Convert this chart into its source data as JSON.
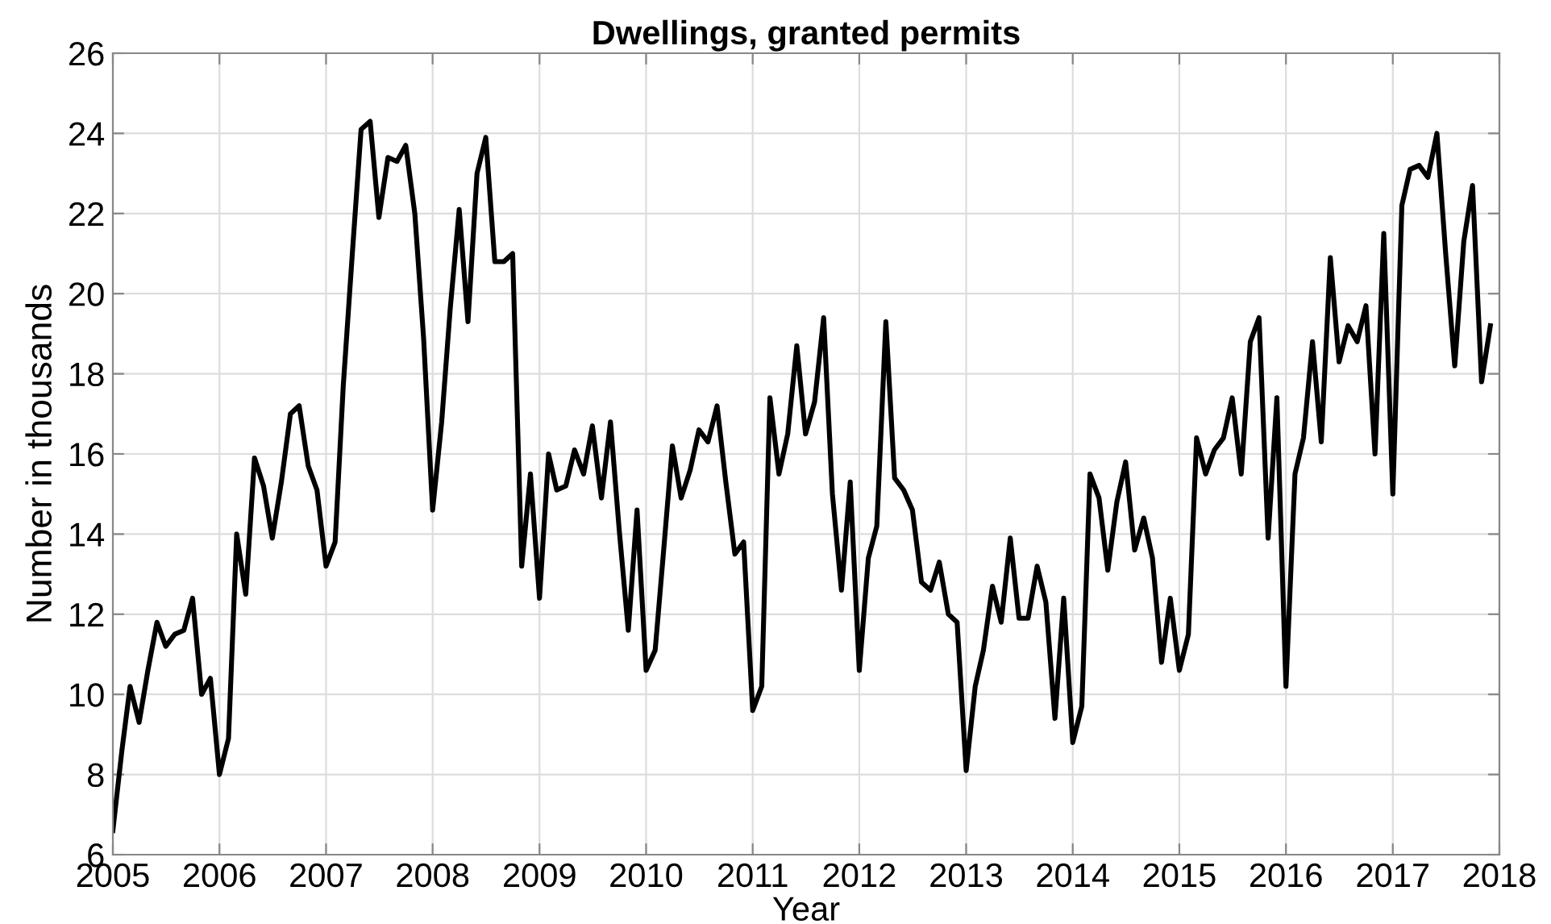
{
  "chart_data": {
    "type": "line",
    "title": "Dwellings, granted permits",
    "xlabel": "Year",
    "ylabel": "Number in thousands",
    "xlim": [
      "2005",
      "2018"
    ],
    "xticks": [
      "2005",
      "2006",
      "2007",
      "2008",
      "2009",
      "2010",
      "2011",
      "2012",
      "2013",
      "2014",
      "2015",
      "2016",
      "2017",
      "2018"
    ],
    "x": [
      "2005-01",
      "2005-02",
      "2005-03",
      "2005-04",
      "2005-05",
      "2005-06",
      "2005-07",
      "2005-08",
      "2005-09",
      "2005-10",
      "2005-11",
      "2005-12",
      "2006-01",
      "2006-02",
      "2006-03",
      "2006-04",
      "2006-05",
      "2006-06",
      "2006-07",
      "2006-08",
      "2006-09",
      "2006-10",
      "2006-11",
      "2006-12",
      "2007-01",
      "2007-02",
      "2007-03",
      "2007-04",
      "2007-05",
      "2007-06",
      "2007-07",
      "2007-08",
      "2007-09",
      "2007-10",
      "2007-11",
      "2007-12",
      "2008-01",
      "2008-02",
      "2008-03",
      "2008-04",
      "2008-05",
      "2008-06",
      "2008-07",
      "2008-08",
      "2008-09",
      "2008-10",
      "2008-11",
      "2008-12",
      "2009-01",
      "2009-02",
      "2009-03",
      "2009-04",
      "2009-05",
      "2009-06",
      "2009-07",
      "2009-08",
      "2009-09",
      "2009-10",
      "2009-11",
      "2009-12",
      "2010-01",
      "2010-02",
      "2010-03",
      "2010-04",
      "2010-05",
      "2010-06",
      "2010-07",
      "2010-08",
      "2010-09",
      "2010-10",
      "2010-11",
      "2010-12",
      "2011-01",
      "2011-02",
      "2011-03",
      "2011-04",
      "2011-05",
      "2011-06",
      "2011-07",
      "2011-08",
      "2011-09",
      "2011-10",
      "2011-11",
      "2011-12",
      "2012-01",
      "2012-02",
      "2012-03",
      "2012-04",
      "2012-05",
      "2012-06",
      "2012-07",
      "2012-08",
      "2012-09",
      "2012-10",
      "2012-11",
      "2012-12",
      "2013-01",
      "2013-02",
      "2013-03",
      "2013-04",
      "2013-05",
      "2013-06",
      "2013-07",
      "2013-08",
      "2013-09",
      "2013-10",
      "2013-11",
      "2013-12",
      "2014-01",
      "2014-02",
      "2014-03",
      "2014-04",
      "2014-05",
      "2014-06",
      "2014-07",
      "2014-08",
      "2014-09",
      "2014-10",
      "2014-11",
      "2014-12",
      "2015-01",
      "2015-02",
      "2015-03",
      "2015-04",
      "2015-05",
      "2015-06",
      "2015-07",
      "2015-08",
      "2015-09",
      "2015-10",
      "2015-11",
      "2015-12",
      "2016-01",
      "2016-02",
      "2016-03",
      "2016-04",
      "2016-05",
      "2016-06",
      "2016-07",
      "2016-08",
      "2016-09",
      "2016-10",
      "2016-11",
      "2016-12",
      "2017-01",
      "2017-02",
      "2017-03",
      "2017-04",
      "2017-05",
      "2017-06",
      "2017-07",
      "2017-08",
      "2017-09",
      "2017-10",
      "2017-11",
      "2017-12"
    ],
    "ylim": [
      6,
      26
    ],
    "yticks": [
      6,
      8,
      10,
      12,
      14,
      16,
      18,
      20,
      22,
      24,
      26
    ],
    "grid": true,
    "marker": "none",
    "line_style": "solid",
    "series": [
      {
        "color": "#000000",
        "values": [
          6.6,
          8.6,
          10.2,
          9.3,
          10.6,
          11.8,
          11.2,
          11.5,
          11.6,
          12.4,
          10.0,
          10.4,
          8.0,
          8.9,
          14.0,
          12.5,
          15.9,
          15.2,
          13.9,
          15.3,
          17.0,
          17.2,
          15.7,
          15.1,
          13.2,
          13.8,
          17.7,
          21.0,
          24.1,
          24.3,
          21.9,
          23.4,
          23.3,
          23.7,
          22.0,
          18.9,
          14.6,
          16.8,
          19.6,
          22.1,
          19.3,
          23.0,
          23.9,
          20.8,
          20.8,
          21.0,
          13.2,
          15.5,
          12.4,
          16.0,
          15.1,
          15.2,
          16.1,
          15.5,
          16.7,
          14.9,
          16.8,
          14.1,
          11.6,
          14.6,
          10.6,
          11.1,
          13.5,
          16.2,
          14.9,
          15.6,
          16.6,
          16.3,
          17.2,
          15.3,
          13.5,
          13.8,
          9.6,
          10.2,
          17.4,
          15.5,
          16.5,
          18.7,
          16.5,
          17.3,
          19.4,
          15.0,
          12.6,
          15.3,
          10.6,
          13.4,
          14.2,
          19.3,
          15.4,
          15.1,
          14.6,
          12.8,
          12.6,
          13.3,
          12.0,
          11.8,
          8.1,
          10.2,
          11.1,
          12.7,
          11.8,
          13.9,
          11.9,
          11.9,
          13.2,
          12.3,
          9.4,
          12.4,
          8.8,
          9.7,
          15.5,
          14.9,
          13.1,
          14.8,
          15.8,
          13.6,
          14.4,
          13.4,
          10.8,
          12.4,
          10.6,
          11.5,
          16.4,
          15.5,
          16.1,
          16.4,
          17.4,
          15.5,
          18.8,
          19.4,
          13.9,
          17.4,
          10.2,
          15.5,
          16.4,
          18.8,
          16.3,
          20.9,
          18.3,
          19.2,
          18.8,
          19.7,
          16.0,
          21.5,
          15.0,
          22.2,
          23.1,
          23.2,
          22.9,
          24.0,
          21.0,
          18.2,
          21.3,
          22.7,
          17.8,
          19.2
        ]
      }
    ]
  }
}
